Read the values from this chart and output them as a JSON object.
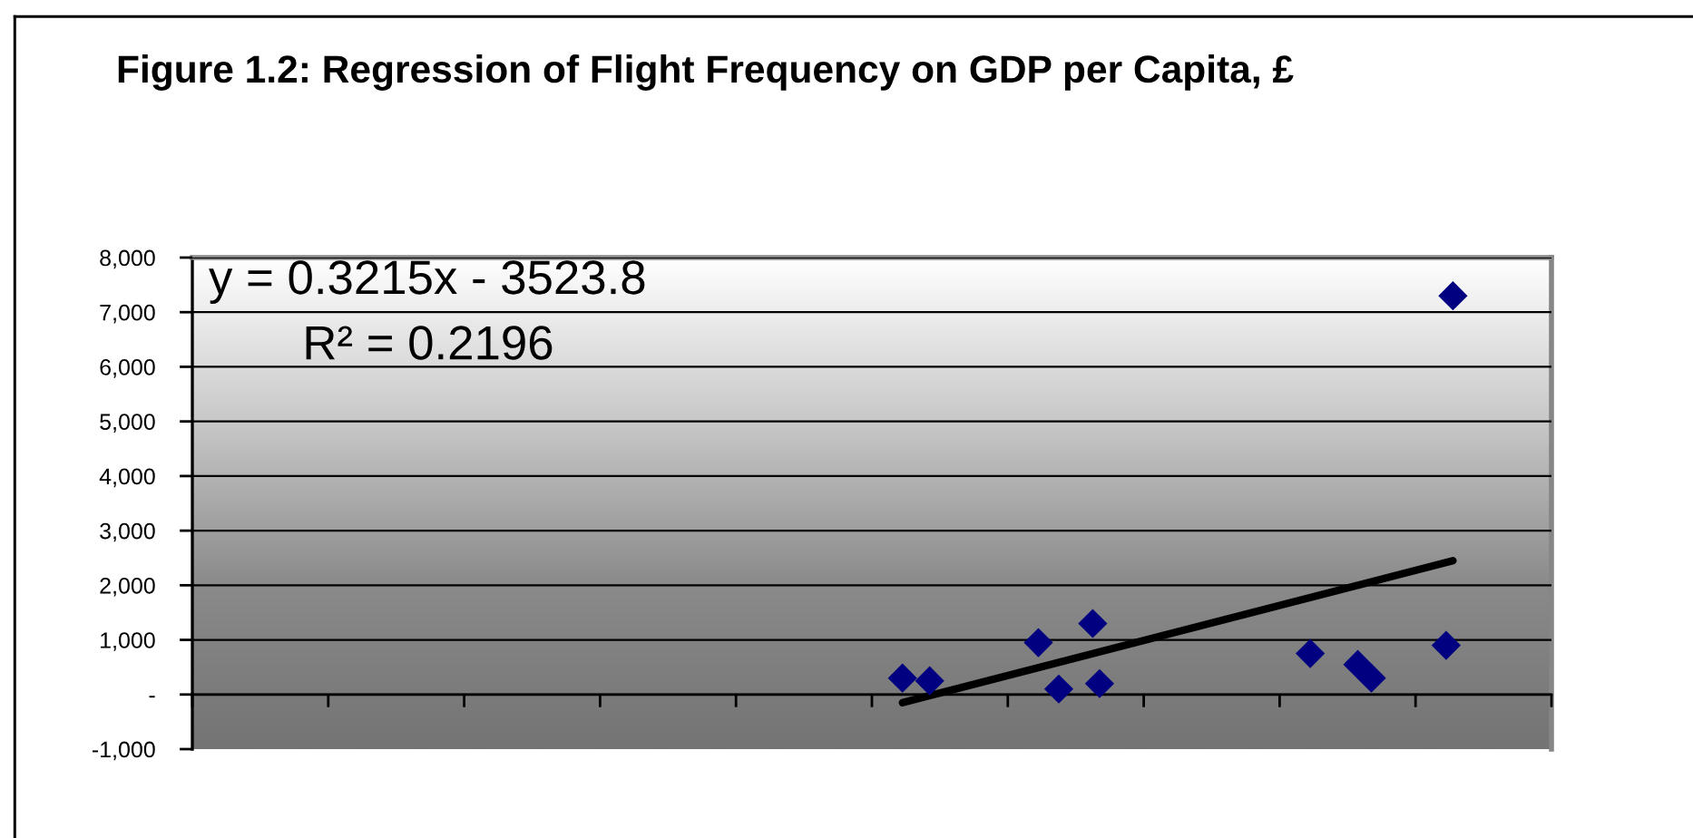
{
  "chart_data": {
    "type": "scatter",
    "title": "Figure 1.2: Regression of Flight Frequency on GDP per Capita, £",
    "annotations": [
      "y = 0.3215x - 3523.8",
      "R² = 0.2196"
    ],
    "categories": [
      null,
      null,
      null,
      null,
      null,
      null,
      null,
      null,
      null,
      null,
      null,
      null,
      null,
      null,
      null,
      null,
      null,
      null,
      null,
      null,
      null,
      null,
      null,
      null,
      null,
      null,
      null,
      null,
      null,
      null,
      null,
      null,
      null,
      null,
      null,
      null,
      null,
      null,
      null,
      null,
      null,
      null,
      null,
      null,
      null,
      null,
      null,
      null,
      null,
      null,
      null,
      null,
      null,
      null,
      null,
      null,
      null,
      null,
      null,
      null,
      null,
      null,
      null,
      null,
      null,
      null,
      null,
      null,
      null,
      null,
      null,
      null,
      null,
      null,
      null,
      null,
      null,
      null,
      null,
      null,
      null,
      null,
      null,
      null,
      null,
      null,
      null,
      null,
      null,
      null,
      null,
      null,
      null,
      null,
      null,
      null,
      null,
      null,
      null,
      null,
      null,
      null,
      null,
      null,
      null,
      null,
      null,
      null,
      null,
      null,
      null,
      null,
      null,
      null,
      null,
      null,
      null,
      null,
      null,
      null,
      null,
      null,
      null,
      null,
      null,
      null,
      null,
      null,
      null,
      null,
      null,
      null,
      null,
      null,
      null,
      null,
      null,
      null,
      null,
      null,
      null,
      null,
      null,
      null,
      null,
      null,
      null,
      null,
      null,
      null,
      null,
      null,
      null,
      null,
      null,
      null,
      null,
      null,
      null,
      null,
      null,
      null,
      null,
      null,
      null,
      null,
      null,
      null,
      null,
      null,
      null,
      null,
      null,
      null,
      null,
      null,
      null,
      null,
      null,
      null,
      null,
      null,
      null,
      null,
      null,
      null,
      null,
      null,
      null,
      null,
      null,
      null,
      null,
      null,
      null,
      null,
      null,
      null,
      null,
      null
    ],
    "series": [
      {
        "color": "#000080",
        "marker": "diamond",
        "values": [
          null,
          null,
          null,
          null,
          null,
          null,
          null,
          null,
          null,
          null,
          null,
          null,
          null,
          null,
          null,
          null,
          null,
          null,
          null,
          null,
          null,
          null,
          null,
          null,
          null,
          null,
          null,
          null,
          null,
          null,
          null,
          null,
          null,
          null,
          null,
          null,
          null,
          null,
          null,
          null,
          null,
          null,
          null,
          null,
          null,
          null,
          null,
          null,
          null,
          null,
          null,
          null,
          null,
          null,
          null,
          null,
          null,
          null,
          null,
          null,
          null,
          null,
          null,
          null,
          null,
          null,
          null,
          null,
          null,
          null,
          null,
          null,
          null,
          null,
          null,
          null,
          null,
          null,
          null,
          null,
          null,
          null,
          null,
          null,
          null,
          null,
          null,
          null,
          null,
          null,
          null,
          null,
          null,
          null,
          null,
          null,
          null,
          null,
          null,
          null,
          null,
          null,
          null,
          null,
          300,
          null,
          null,
          null,
          250,
          null,
          null,
          null,
          null,
          null,
          null,
          null,
          null,
          null,
          null,
          null,
          null,
          null,
          null,
          null,
          950,
          null,
          null,
          100,
          null,
          null,
          null,
          null,
          1300,
          200,
          null,
          null,
          null,
          null,
          null,
          null,
          null,
          null,
          null,
          null,
          null,
          null,
          null,
          null,
          null,
          null,
          null,
          null,
          null,
          null,
          null,
          null,
          null,
          null,
          null,
          null,
          null,
          null,
          null,
          null,
          750,
          null,
          null,
          null,
          null,
          null,
          null,
          550,
          null,
          300,
          null,
          null,
          null,
          null,
          null,
          null,
          null,
          null,
          null,
          null,
          900,
          7300,
          null,
          null,
          null,
          null,
          null,
          null,
          null,
          null,
          null,
          null,
          null,
          null,
          null,
          null
        ]
      },
      {
        "type": "line",
        "color": "#000000",
        "marker": "none",
        "values": [
          null,
          null,
          null,
          null,
          null,
          null,
          null,
          null,
          null,
          null,
          null,
          null,
          null,
          null,
          null,
          null,
          null,
          null,
          null,
          null,
          null,
          null,
          null,
          null,
          null,
          null,
          null,
          null,
          null,
          null,
          null,
          null,
          null,
          null,
          null,
          null,
          null,
          null,
          null,
          null,
          null,
          null,
          null,
          null,
          null,
          null,
          null,
          null,
          null,
          null,
          null,
          null,
          null,
          null,
          null,
          null,
          null,
          null,
          null,
          null,
          null,
          null,
          null,
          null,
          null,
          null,
          null,
          null,
          null,
          null,
          null,
          null,
          null,
          null,
          null,
          null,
          null,
          null,
          null,
          null,
          null,
          null,
          null,
          null,
          null,
          null,
          null,
          null,
          null,
          null,
          null,
          null,
          null,
          null,
          null,
          null,
          null,
          null,
          null,
          null,
          null,
          null,
          null,
          null,
          -150,
          null,
          null,
          null,
          null,
          null,
          null,
          null,
          null,
          null,
          null,
          null,
          null,
          null,
          null,
          null,
          null,
          null,
          null,
          null,
          null,
          null,
          null,
          null,
          null,
          null,
          null,
          null,
          null,
          null,
          null,
          null,
          null,
          null,
          null,
          null,
          null,
          null,
          null,
          null,
          null,
          null,
          null,
          null,
          null,
          null,
          null,
          null,
          null,
          null,
          null,
          null,
          null,
          null,
          null,
          null,
          null,
          null,
          null,
          null,
          null,
          null,
          null,
          null,
          null,
          null,
          null,
          null,
          null,
          null,
          null,
          null,
          null,
          null,
          null,
          null,
          null,
          null,
          null,
          null,
          null,
          2450,
          null,
          null,
          null,
          null,
          null,
          null,
          null,
          null,
          null,
          null,
          null,
          null,
          null,
          null
        ]
      }
    ],
    "ylim": [
      -1000,
      8000
    ],
    "yticks": [
      {
        "value": -1000,
        "label": "-1,000"
      },
      {
        "value": 0,
        "label": "-"
      },
      {
        "value": 1000,
        "label": "1,000"
      },
      {
        "value": 2000,
        "label": "2,000"
      },
      {
        "value": 3000,
        "label": "3,000"
      },
      {
        "value": 4000,
        "label": "4,000"
      },
      {
        "value": 5000,
        "label": "5,000"
      },
      {
        "value": 6000,
        "label": "6,000"
      },
      {
        "value": 7000,
        "label": "7,000"
      },
      {
        "value": 8000,
        "label": "8,000"
      }
    ],
    "grid": "y",
    "tick_labels": "y"
  }
}
